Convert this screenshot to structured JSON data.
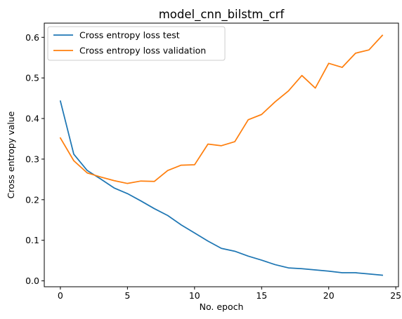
{
  "chart_data": {
    "type": "line",
    "title": "model_cnn_bilstm_crf",
    "xlabel": "No. epoch",
    "ylabel": "Cross entropy value",
    "xlim": [
      -1.2,
      25.2
    ],
    "ylim": [
      -0.0145,
      0.635
    ],
    "x_ticks": [
      0,
      5,
      10,
      15,
      20,
      25
    ],
    "x_tick_labels": [
      "0",
      "5",
      "10",
      "15",
      "20",
      "25"
    ],
    "y_ticks": [
      0.0,
      0.1,
      0.2,
      0.3,
      0.4,
      0.5,
      0.6
    ],
    "y_tick_labels": [
      "0.0",
      "0.1",
      "0.2",
      "0.3",
      "0.4",
      "0.5",
      "0.6"
    ],
    "grid": false,
    "legend_position": "upper-left",
    "x": [
      0,
      1,
      2,
      3,
      4,
      5,
      6,
      7,
      8,
      9,
      10,
      11,
      12,
      13,
      14,
      15,
      16,
      17,
      18,
      19,
      20,
      21,
      22,
      23,
      24
    ],
    "series": [
      {
        "name": "Cross entropy loss test",
        "color": "#1f77b4",
        "values": [
          0.443,
          0.312,
          0.272,
          0.251,
          0.229,
          0.215,
          0.197,
          0.178,
          0.161,
          0.138,
          0.118,
          0.098,
          0.08,
          0.073,
          0.061,
          0.051,
          0.04,
          0.032,
          0.03,
          0.027,
          0.024,
          0.02,
          0.02,
          0.017,
          0.014
        ]
      },
      {
        "name": "Cross entropy loss validation",
        "color": "#ff7f0e",
        "values": [
          0.352,
          0.296,
          0.266,
          0.256,
          0.247,
          0.24,
          0.246,
          0.245,
          0.272,
          0.285,
          0.286,
          0.337,
          0.333,
          0.343,
          0.397,
          0.41,
          0.441,
          0.468,
          0.506,
          0.475,
          0.536,
          0.526,
          0.561,
          0.569,
          0.605
        ]
      }
    ]
  }
}
